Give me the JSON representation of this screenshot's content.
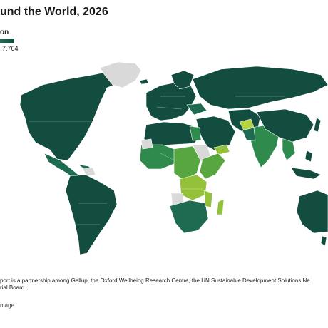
{
  "title": "und the World, 2026",
  "legend": {
    "label": "on",
    "max_value": "7.764",
    "color_low": "#a9c94a",
    "color_high": "#114a3e"
  },
  "map": {
    "colors": {
      "ocean": "#ffffff",
      "no_data": "#d9d9d9",
      "tier_high": "#124d40",
      "tier_mid_high": "#1f6b52",
      "tier_mid": "#2f8a4e",
      "tier_mid_low": "#57a640",
      "tier_low": "#93c13a",
      "tier_lowest": "#b6d344"
    }
  },
  "footnote": {
    "line1": "port is a partnership among Gallup, the Oxford Wellbeing Research Centre, the UN Sustainable Development Solutions Ne",
    "line2": "rial Board."
  },
  "credit": "mage"
}
